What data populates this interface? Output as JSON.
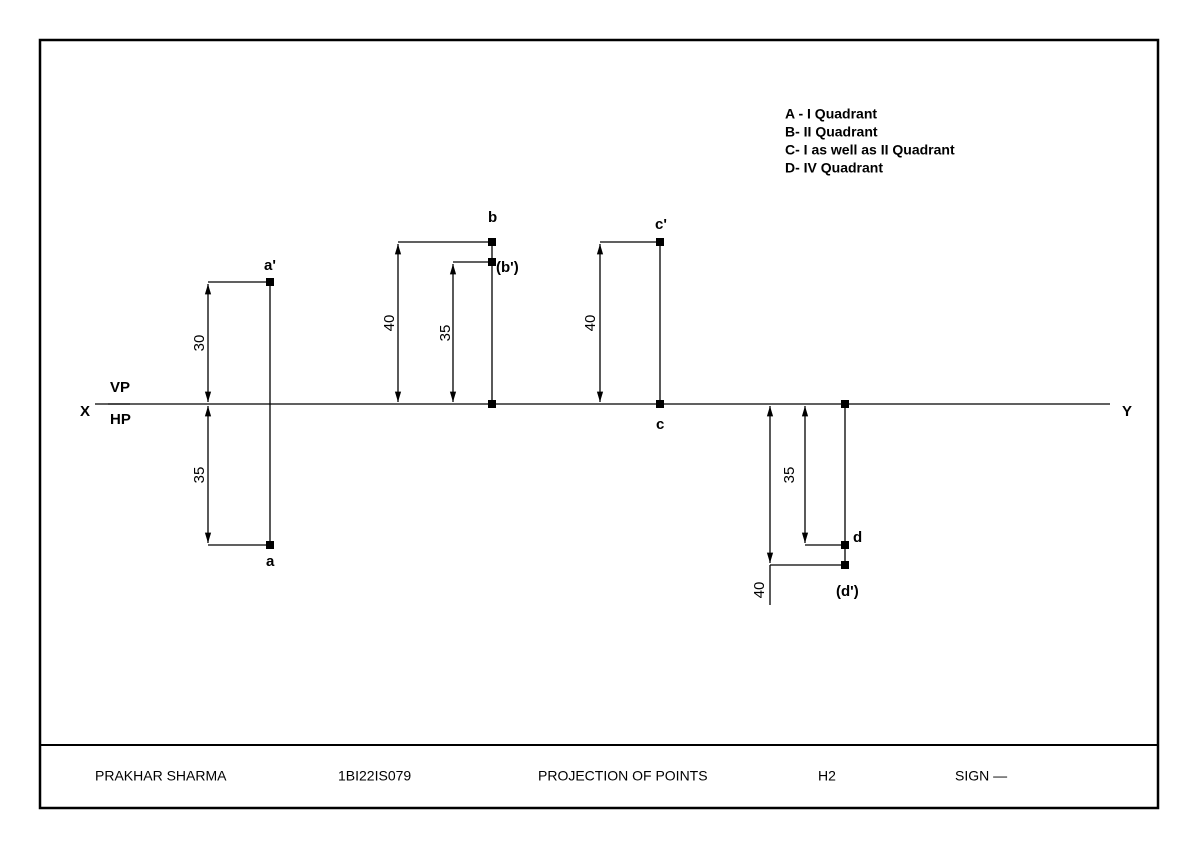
{
  "labels": {
    "x": "X",
    "y": "Y",
    "vp": "VP",
    "hp": "HP"
  },
  "points": {
    "a_front": "a'",
    "a_top": "a",
    "b_top": "b",
    "b_front": "(b')",
    "c_front": "c'",
    "c_top": "c",
    "d_top": "d",
    "d_front": "(d')"
  },
  "dimensions": [
    "30",
    "35",
    "40",
    "35",
    "40",
    "35",
    "40"
  ],
  "legend": [
    "A - I Quadrant",
    "B- II Quadrant",
    "C- I as well as II Quadrant",
    "D- IV Quadrant"
  ],
  "title_block": [
    "PRAKHAR  SHARMA",
    "1BI22IS079",
    "PROJECTION OF POINTS",
    "H2",
    "SIGN —"
  ]
}
